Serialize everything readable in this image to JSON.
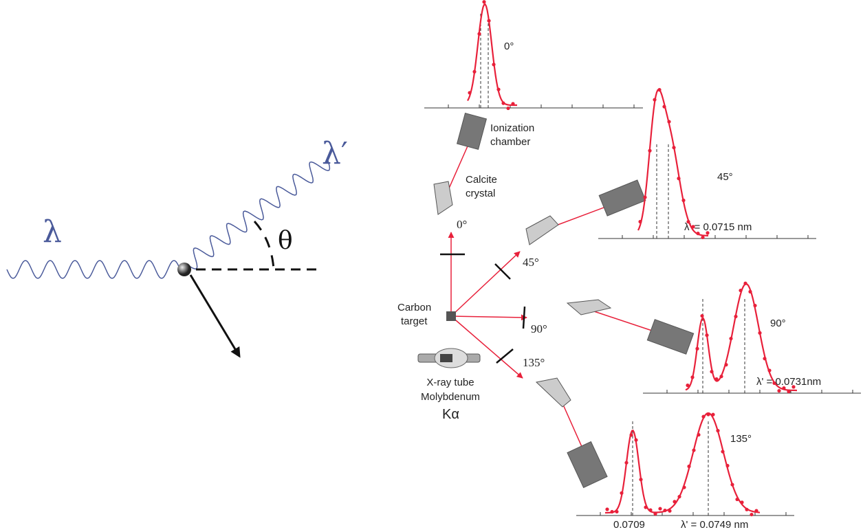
{
  "left": {
    "incident": "λ",
    "scattered": "λ′",
    "angle": "θ"
  },
  "apparatus": {
    "detector": [
      "Ionization",
      "chamber"
    ],
    "crystal": [
      "Calcite",
      "crystal"
    ],
    "target": [
      "Carbon",
      "target"
    ],
    "source": [
      "X-ray tube",
      "Molybdenum",
      "Kα"
    ],
    "beam_angles": [
      "0°",
      "45°",
      "90°",
      "135°"
    ]
  },
  "graphs": [
    {
      "angle": "0°"
    },
    {
      "angle": "45°",
      "label": "λ' = 0.0715 nm"
    },
    {
      "angle": "90°",
      "label": "λ' = 0.0731nm"
    },
    {
      "angle": "135°",
      "label": "λ' = 0.0749 nm",
      "reference": "0.0709"
    }
  ]
}
